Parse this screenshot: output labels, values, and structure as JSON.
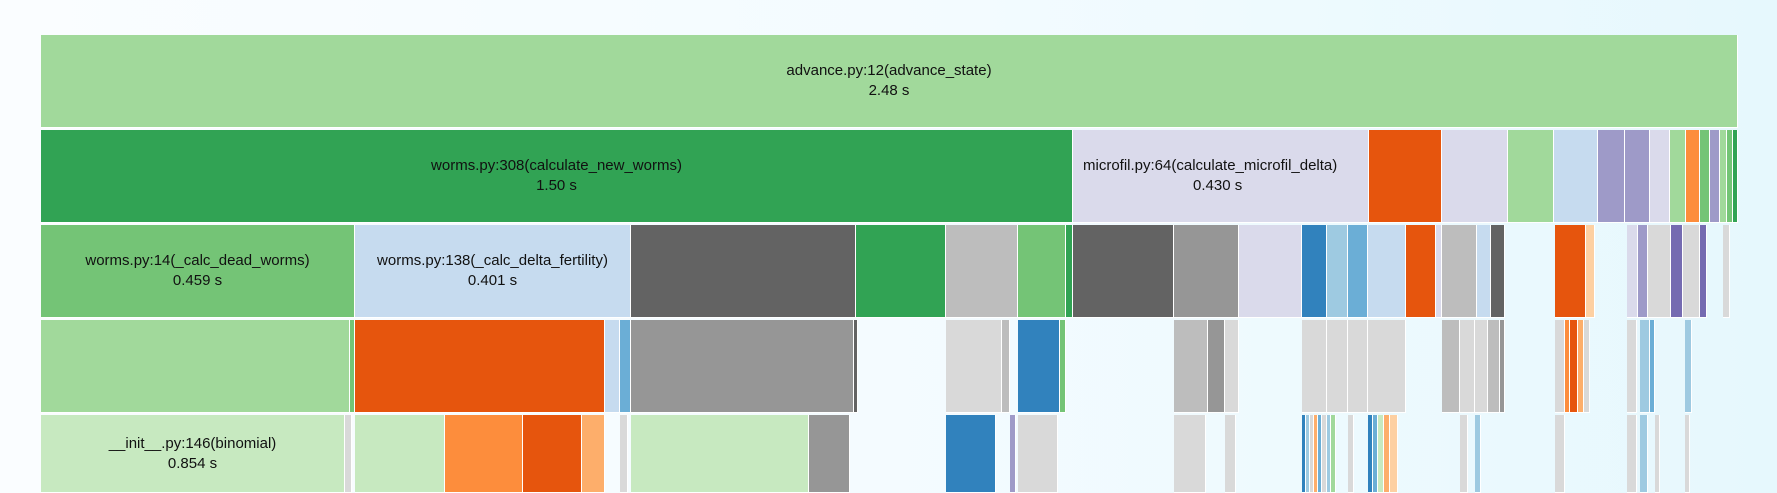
{
  "colors": {
    "g1": "#a1d99b",
    "g2": "#31a354",
    "g3": "#74c476",
    "g4": "#c7e9c0",
    "lav": "#dadaeb",
    "pur": "#9e9ac8",
    "pur2": "#756bb1",
    "lblue": "#c6dbef",
    "blue": "#3182bd",
    "mblue": "#6baed6",
    "pblue": "#9ecae1",
    "orange": "#e6550d",
    "orange2": "#fd8d3c",
    "orange3": "#fdae6b",
    "peach": "#fdd0a2",
    "dgray": "#636363",
    "mgray": "#969696",
    "lgray": "#bdbdbd",
    "vlgray": "#d9d9d9"
  },
  "nodes": [
    {
      "title": "advance.py:12(advance_state)",
      "value": "2.48 s"
    },
    {
      "title": "worms.py:308(calculate_new_worms)",
      "value": "1.50 s"
    },
    {
      "title": "microfil.py:64(calculate_microfil_delta)",
      "value": "0.430 s"
    },
    {
      "title": "worms.py:14(_calc_dead_worms)",
      "value": "0.459 s"
    },
    {
      "title": "worms.py:138(_calc_delta_fertility)",
      "value": "0.401 s"
    },
    {
      "title": "__init__.py:146(binomial)",
      "value": "0.854 s"
    }
  ]
}
